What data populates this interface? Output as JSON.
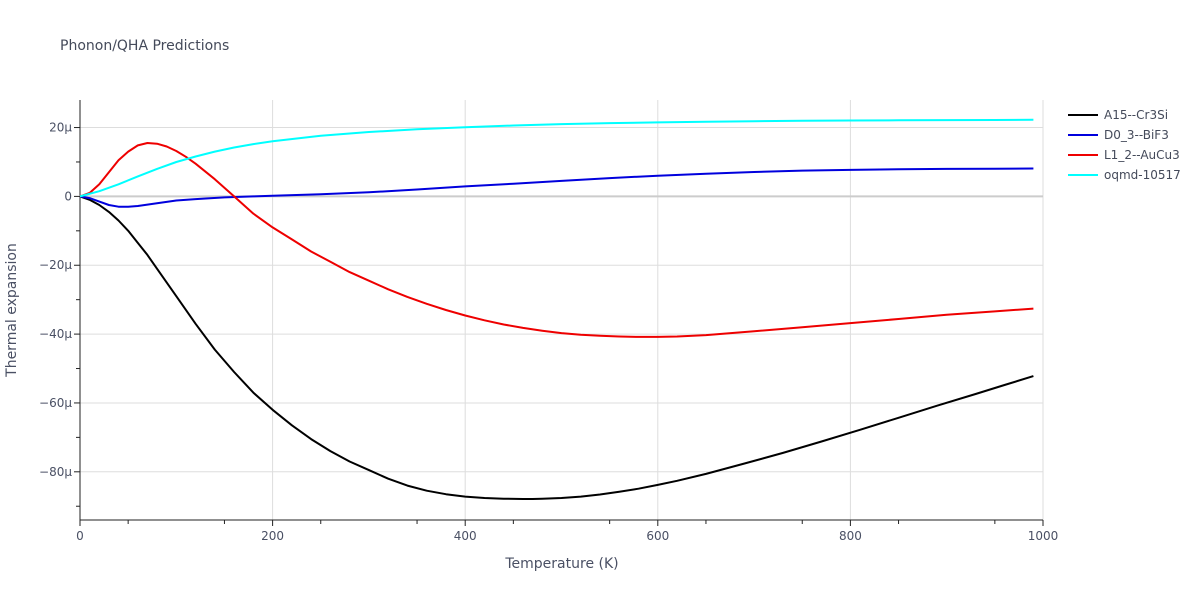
{
  "chart_data": {
    "type": "line",
    "title": "Phonon/QHA Predictions",
    "xlabel": "Temperature (K)",
    "ylabel": "Thermal expansion",
    "xlim": [
      0,
      1000
    ],
    "ylim": [
      -94,
      28
    ],
    "x_ticks": [
      0,
      200,
      400,
      600,
      800,
      1000
    ],
    "x_tick_labels": [
      "0",
      "200",
      "400",
      "600",
      "800",
      "1000"
    ],
    "y_ticks": [
      20,
      0,
      -20,
      -40,
      -60,
      -80
    ],
    "y_tick_labels": [
      "20μ",
      "0",
      "−20μ",
      "−40μ",
      "−60μ",
      "−80μ"
    ],
    "grid": true,
    "legend_position": "top-right",
    "series": [
      {
        "name": "A15--Cr3Si",
        "color": "#000000",
        "x": [
          0,
          10,
          20,
          30,
          40,
          50,
          60,
          70,
          80,
          100,
          120,
          140,
          160,
          180,
          200,
          220,
          240,
          260,
          280,
          300,
          320,
          340,
          360,
          380,
          400,
          420,
          440,
          460,
          470,
          480,
          500,
          520,
          540,
          560,
          580,
          600,
          620,
          650,
          690,
          730,
          770,
          810,
          850,
          890,
          930,
          960,
          990
        ],
        "values": [
          0,
          -1,
          -2.5,
          -4.5,
          -7,
          -10,
          -13.5,
          -17,
          -21,
          -29,
          -37,
          -44.5,
          -51,
          -57,
          -62,
          -66.5,
          -70.5,
          -74,
          -77,
          -79.5,
          -82,
          -84,
          -85.5,
          -86.5,
          -87.2,
          -87.6,
          -87.8,
          -87.9,
          -87.9,
          -87.8,
          -87.6,
          -87.2,
          -86.6,
          -85.8,
          -84.9,
          -83.8,
          -82.6,
          -80.6,
          -77.6,
          -74.5,
          -71.2,
          -67.8,
          -64.3,
          -60.8,
          -57.4,
          -54.8,
          -52.2
        ]
      },
      {
        "name": "D0_3--BiF3",
        "color": "#0000dd",
        "x": [
          0,
          10,
          20,
          30,
          40,
          50,
          60,
          80,
          100,
          120,
          150,
          180,
          200,
          250,
          300,
          350,
          400,
          450,
          500,
          550,
          600,
          650,
          700,
          750,
          800,
          850,
          900,
          950,
          990
        ],
        "values": [
          0,
          -0.5,
          -1.5,
          -2.5,
          -3,
          -3,
          -2.8,
          -2,
          -1.2,
          -0.8,
          -0.3,
          0,
          0.2,
          0.6,
          1.2,
          2,
          2.9,
          3.7,
          4.5,
          5.3,
          6,
          6.6,
          7.1,
          7.5,
          7.7,
          7.9,
          8,
          8.05,
          8.1
        ]
      },
      {
        "name": "L1_2--AuCu3",
        "color": "#ee0000",
        "x": [
          0,
          10,
          20,
          30,
          40,
          50,
          60,
          70,
          80,
          90,
          100,
          110,
          120,
          140,
          160,
          180,
          200,
          220,
          240,
          260,
          280,
          300,
          320,
          340,
          360,
          380,
          400,
          420,
          440,
          460,
          480,
          500,
          520,
          540,
          560,
          580,
          600,
          620,
          650,
          700,
          750,
          800,
          850,
          900,
          950,
          990
        ],
        "values": [
          0,
          1,
          3.5,
          7,
          10.5,
          13,
          14.8,
          15.5,
          15.3,
          14.5,
          13.2,
          11.5,
          9.5,
          5,
          0,
          -5,
          -9,
          -12.5,
          -16,
          -19,
          -22,
          -24.5,
          -27,
          -29.2,
          -31.2,
          -33,
          -34.6,
          -36,
          -37.2,
          -38.2,
          -39,
          -39.7,
          -40.2,
          -40.5,
          -40.7,
          -40.8,
          -40.8,
          -40.7,
          -40.3,
          -39.2,
          -38,
          -36.8,
          -35.6,
          -34.4,
          -33.4,
          -32.6
        ]
      },
      {
        "name": "oqmd-10517",
        "color": "#00ffff",
        "x": [
          0,
          20,
          40,
          60,
          80,
          100,
          120,
          140,
          160,
          180,
          200,
          250,
          300,
          350,
          400,
          450,
          500,
          550,
          600,
          650,
          700,
          750,
          800,
          850,
          900,
          950,
          990
        ],
        "values": [
          0,
          1.5,
          3.5,
          5.8,
          8,
          10,
          11.6,
          13,
          14.2,
          15.2,
          16,
          17.6,
          18.7,
          19.5,
          20.1,
          20.6,
          21,
          21.3,
          21.5,
          21.7,
          21.85,
          21.95,
          22.05,
          22.1,
          22.15,
          22.2,
          22.25
        ]
      }
    ]
  }
}
